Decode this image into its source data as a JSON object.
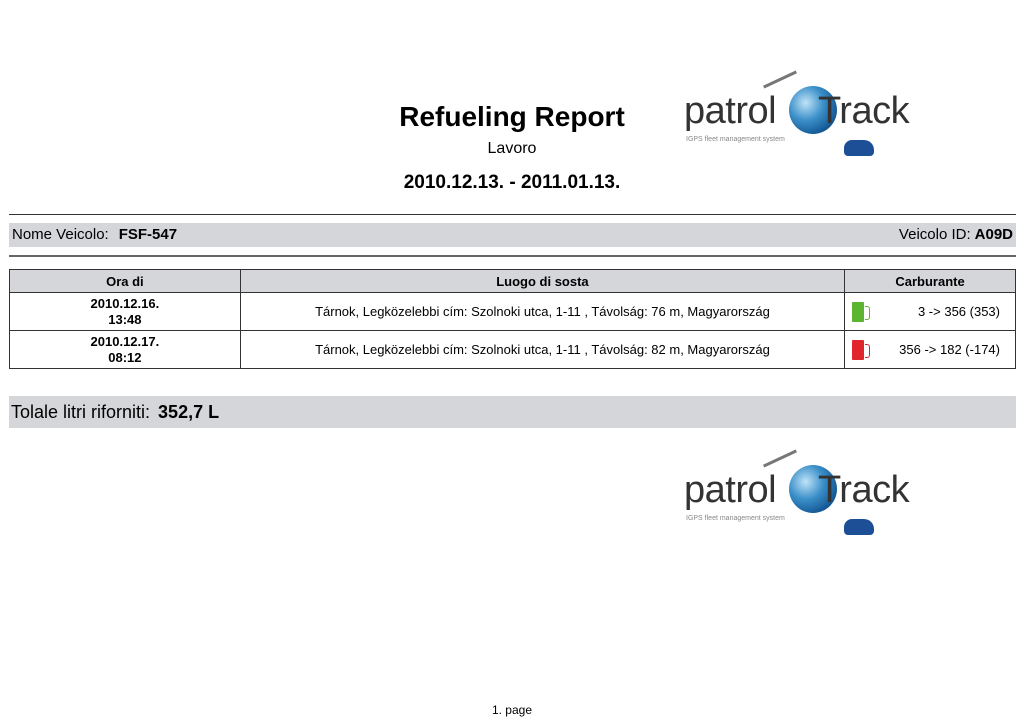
{
  "report": {
    "title": "Refueling Report",
    "subtitle": "Lavoro",
    "date_range": "2010.12.13. - 2011.01.13."
  },
  "logo": {
    "word1": "patrol",
    "word2": "Track",
    "tagline": "IGPS fleet management system"
  },
  "vehicle": {
    "name_label": "Nome Veicolo:",
    "name": "FSF-547",
    "id_label": "Veicolo ID:",
    "id": "A09D"
  },
  "table": {
    "headers": [
      "Ora di",
      "Luogo di sosta",
      "Carburante"
    ],
    "rows": [
      {
        "date": "2010.12.16.",
        "time": "13:48",
        "location": "Tárnok, Legközelebbi cím: Szolnoki utca, 1-11 ,  Távolság: 76 m, Magyarország",
        "fuel": "3 -> 356  (353)",
        "icon": "fuel-pump-icon",
        "color": "#5cb531"
      },
      {
        "date": "2010.12.17.",
        "time": "08:12",
        "location": "Tárnok, Legközelebbi cím: Szolnoki utca, 1-11 ,  Távolság: 82 m, Magyarország",
        "fuel": "356 -> 182  (-174)",
        "icon": "fuel-pump-icon",
        "color": "#e0262b"
      }
    ]
  },
  "total": {
    "label": "Tolale litri riforniti:",
    "value": "352,7 L"
  },
  "footer": {
    "page": "1. page"
  }
}
